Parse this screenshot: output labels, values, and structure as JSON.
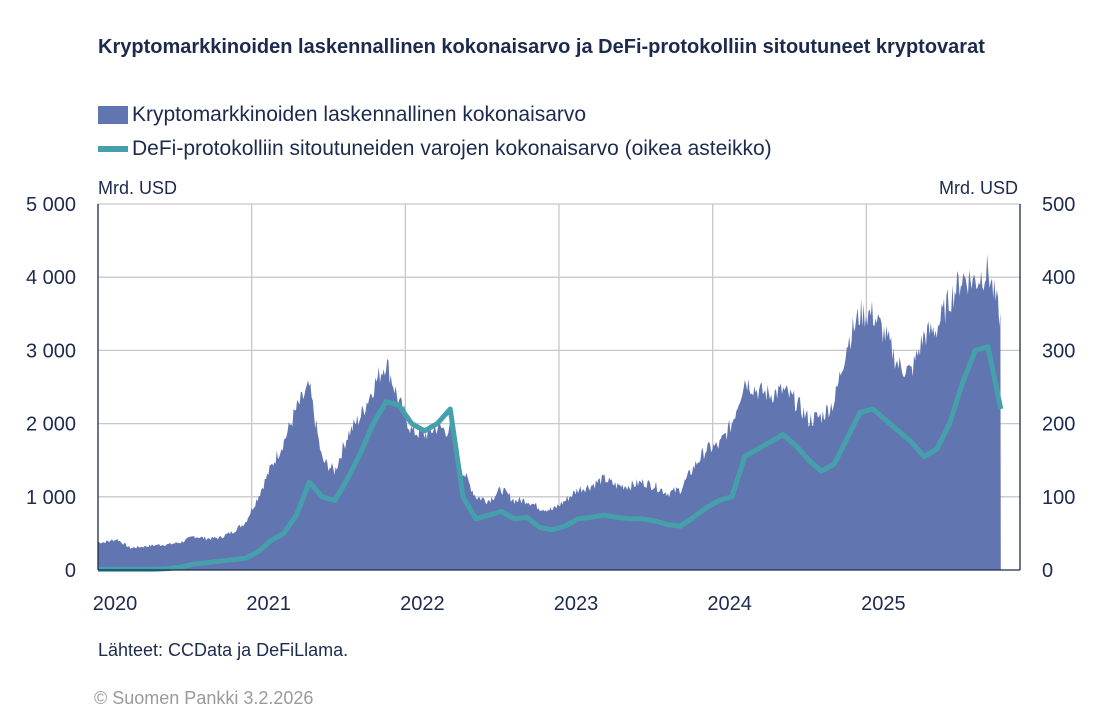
{
  "chart_data": {
    "type": "area",
    "title": "Kryptomarkkinoiden laskennallinen kokonaisarvo ja DeFi-protokolliin sitoutuneet kryptovarat",
    "left_unit": "Mrd. USD",
    "right_unit": "Mrd. USD",
    "xlim": [
      "2020-01",
      "2026-01"
    ],
    "ylim_left": [
      0,
      5000
    ],
    "ylim_right": [
      0,
      500
    ],
    "left_ticks": [
      "0",
      "1 000",
      "2 000",
      "3 000",
      "4 000",
      "5 000"
    ],
    "right_ticks": [
      "0",
      "100",
      "200",
      "300",
      "400",
      "500"
    ],
    "x_ticks": [
      "2020",
      "2021",
      "2022",
      "2023",
      "2024",
      "2025"
    ],
    "grid": true,
    "legend_placement": "top",
    "x": [
      "2020-01",
      "2020-02",
      "2020-03",
      "2020-04",
      "2020-05",
      "2020-06",
      "2020-07",
      "2020-08",
      "2020-09",
      "2020-10",
      "2020-11",
      "2020-12",
      "2021-01",
      "2021-02",
      "2021-03",
      "2021-04",
      "2021-05",
      "2021-06",
      "2021-07",
      "2021-08",
      "2021-09",
      "2021-10",
      "2021-11",
      "2021-12",
      "2022-01",
      "2022-02",
      "2022-03",
      "2022-04",
      "2022-05",
      "2022-06",
      "2022-07",
      "2022-08",
      "2022-09",
      "2022-10",
      "2022-11",
      "2022-12",
      "2023-01",
      "2023-02",
      "2023-03",
      "2023-04",
      "2023-05",
      "2023-06",
      "2023-07",
      "2023-08",
      "2023-09",
      "2023-10",
      "2023-11",
      "2023-12",
      "2024-01",
      "2024-02",
      "2024-03",
      "2024-04",
      "2024-05",
      "2024-06",
      "2024-07",
      "2024-08",
      "2024-09",
      "2024-10",
      "2024-11",
      "2024-12",
      "2025-01",
      "2025-02",
      "2025-03",
      "2025-04",
      "2025-05",
      "2025-06",
      "2025-07",
      "2025-08",
      "2025-09",
      "2025-10",
      "2025-11"
    ],
    "series": [
      {
        "name": "Kryptomarkkinoiden laskennallinen kokonaisarvo",
        "axis": "left",
        "kind": "area",
        "color": "#6175b0",
        "values": [
          380,
          420,
          300,
          320,
          340,
          350,
          380,
          460,
          430,
          440,
          520,
          650,
          1000,
          1400,
          1750,
          2200,
          2500,
          1500,
          1350,
          1850,
          2100,
          2500,
          2850,
          2300,
          1900,
          1850,
          1950,
          1900,
          1350,
          1000,
          950,
          1100,
          950,
          950,
          850,
          820,
          950,
          1100,
          1150,
          1250,
          1150,
          1150,
          1200,
          1150,
          1050,
          1100,
          1400,
          1650,
          1700,
          2000,
          2600,
          2450,
          2400,
          2450,
          2300,
          2050,
          2100,
          2300,
          3100,
          3500,
          3500,
          3200,
          2800,
          2700,
          3200,
          3300,
          3700,
          4000,
          3950,
          4100,
          3400
        ]
      },
      {
        "name": "DeFi-protokolliin sitoutuneiden varojen kokonaisarvo (oikea asteikko)",
        "axis": "right",
        "kind": "line",
        "color": "#45a0ac",
        "values": [
          1,
          1,
          1,
          1,
          1,
          2,
          4,
          8,
          10,
          12,
          14,
          16,
          25,
          40,
          50,
          75,
          120,
          100,
          95,
          125,
          160,
          200,
          230,
          225,
          200,
          190,
          200,
          220,
          100,
          70,
          75,
          80,
          70,
          72,
          58,
          55,
          60,
          70,
          72,
          75,
          72,
          70,
          70,
          67,
          62,
          60,
          72,
          85,
          95,
          100,
          155,
          165,
          175,
          185,
          170,
          150,
          135,
          145,
          180,
          215,
          220,
          205,
          190,
          175,
          155,
          165,
          200,
          255,
          300,
          305,
          220
        ]
      }
    ]
  },
  "legend": {
    "area_label": "Kryptomarkkinoiden laskennallinen kokonaisarvo",
    "line_label": "DeFi-protokolliin sitoutuneiden varojen kokonaisarvo (oikea asteikko)"
  },
  "source": "Lähteet: CCData ja DeFiLlama.",
  "copyright": "© Suomen Pankki 3.2.2026"
}
